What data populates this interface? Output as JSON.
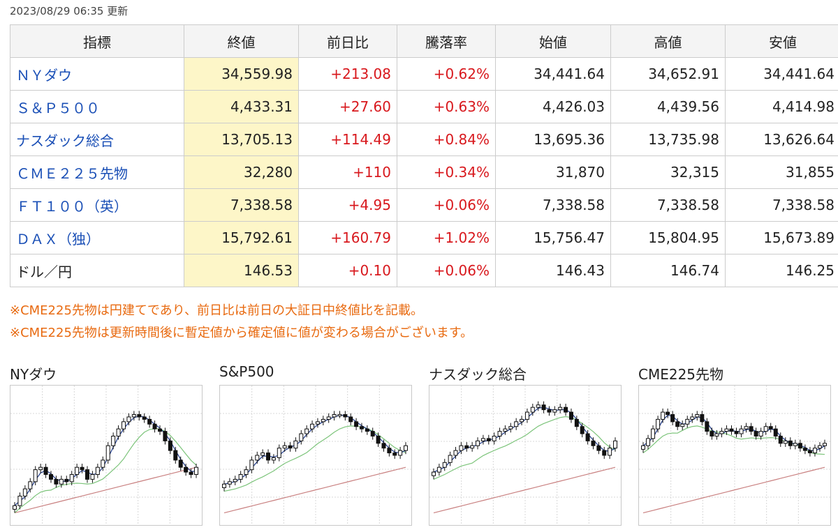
{
  "updated": "2023/08/29 06:35 更新",
  "table": {
    "headers": [
      "指標",
      "終値",
      "前日比",
      "騰落率",
      "始値",
      "高値",
      "安値"
    ],
    "rows": [
      {
        "name": "ＮＹダウ",
        "close": "34,559.98",
        "change": "+213.08",
        "rate": "+0.62%",
        "open": "34,441.64",
        "high": "34,652.91",
        "low": "34,441.64"
      },
      {
        "name": "Ｓ＆Ｐ５００",
        "close": "4,433.31",
        "change": "+27.60",
        "rate": "+0.63%",
        "open": "4,426.03",
        "high": "4,439.56",
        "low": "4,414.98"
      },
      {
        "name": "ナスダック総合",
        "close": "13,705.13",
        "change": "+114.49",
        "rate": "+0.84%",
        "open": "13,695.36",
        "high": "13,735.98",
        "low": "13,626.64"
      },
      {
        "name": "ＣＭＥ２２５先物",
        "close": "32,280",
        "change": "+110",
        "rate": "+0.34%",
        "open": "31,870",
        "high": "32,315",
        "low": "31,855"
      },
      {
        "name": "ＦＴ１００（英）",
        "close": "7,338.58",
        "change": "+4.95",
        "rate": "+0.06%",
        "open": "7,338.58",
        "high": "7,338.58",
        "low": "7,338.58"
      },
      {
        "name": "ＤＡＸ（独）",
        "close": "15,792.61",
        "change": "+160.79",
        "rate": "+1.02%",
        "open": "15,756.47",
        "high": "15,804.95",
        "low": "15,673.89"
      },
      {
        "name": "ドル／円",
        "close": "146.53",
        "change": "+0.10",
        "rate": "+0.06%",
        "open": "146.43",
        "high": "146.74",
        "low": "146.25"
      }
    ]
  },
  "notes": [
    "※CME225先物は円建てであり、前日比は前日の大証日中終値比を記載。",
    "※CME225先物は更新時間後に暫定値から確定値に値が変わる場合がございます。"
  ],
  "colors": {
    "link": "#1a4fb6",
    "up": "#d8181d",
    "note": "#e86a10",
    "close_bg": "#fdf6c8",
    "ma_short": "#1f3a8a",
    "ma_mid": "#7cc47a",
    "ma_long": "#c98080"
  },
  "charts": [
    {
      "title": "NYダウ",
      "close": [
        0.08,
        0.16,
        0.22,
        0.28,
        0.38,
        0.4,
        0.34,
        0.3,
        0.26,
        0.3,
        0.28,
        0.34,
        0.4,
        0.38,
        0.3,
        0.34,
        0.4,
        0.46,
        0.58,
        0.66,
        0.72,
        0.78,
        0.82,
        0.84,
        0.82,
        0.8,
        0.76,
        0.72,
        0.7,
        0.62,
        0.54,
        0.46,
        0.4,
        0.36,
        0.34,
        0.4
      ]
    },
    {
      "title": "S&P500",
      "close": [
        0.26,
        0.28,
        0.3,
        0.34,
        0.38,
        0.46,
        0.5,
        0.52,
        0.46,
        0.48,
        0.56,
        0.58,
        0.56,
        0.62,
        0.68,
        0.72,
        0.76,
        0.78,
        0.8,
        0.82,
        0.84,
        0.84,
        0.82,
        0.78,
        0.74,
        0.72,
        0.7,
        0.66,
        0.6,
        0.56,
        0.52,
        0.5,
        0.54,
        0.58
      ]
    },
    {
      "title": "ナスダック総合",
      "close": [
        0.36,
        0.4,
        0.44,
        0.5,
        0.54,
        0.58,
        0.56,
        0.58,
        0.62,
        0.64,
        0.62,
        0.66,
        0.7,
        0.72,
        0.74,
        0.78,
        0.8,
        0.86,
        0.9,
        0.92,
        0.88,
        0.86,
        0.88,
        0.9,
        0.86,
        0.8,
        0.74,
        0.68,
        0.62,
        0.58,
        0.54,
        0.5,
        0.56,
        0.62
      ]
    },
    {
      "title": "CME225先物",
      "close": [
        0.58,
        0.64,
        0.72,
        0.8,
        0.86,
        0.84,
        0.78,
        0.74,
        0.76,
        0.8,
        0.82,
        0.84,
        0.78,
        0.7,
        0.66,
        0.68,
        0.7,
        0.72,
        0.7,
        0.68,
        0.72,
        0.74,
        0.7,
        0.66,
        0.7,
        0.74,
        0.72,
        0.66,
        0.6,
        0.62,
        0.58,
        0.6,
        0.56,
        0.54,
        0.52,
        0.56,
        0.58,
        0.6
      ]
    }
  ]
}
